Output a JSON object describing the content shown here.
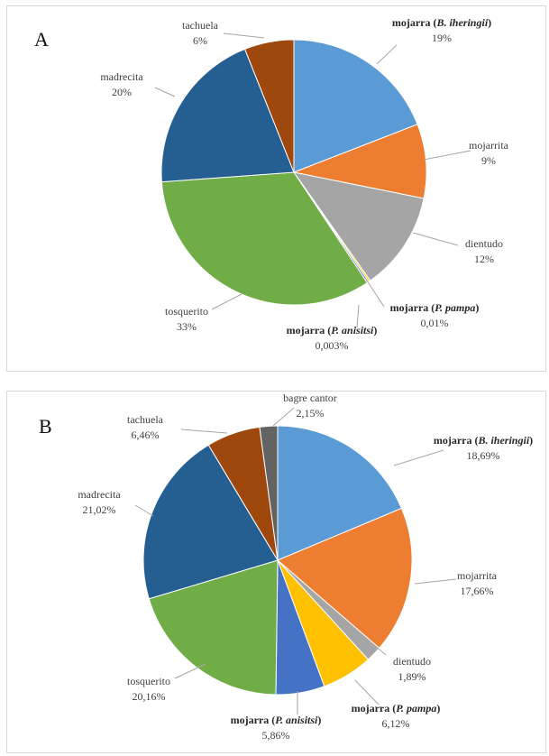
{
  "chart_data": [
    {
      "type": "pie",
      "panel_letter": "A",
      "slices": [
        {
          "pre": "mojarra (",
          "ital": "B. iheringii",
          "post": ")",
          "value": 19,
          "pct": "19%",
          "color": "#5b9bd5",
          "bold": true
        },
        {
          "pre": "mojarrita",
          "ital": "",
          "post": "",
          "value": 9,
          "pct": "9%",
          "color": "#ed7d31",
          "bold": false
        },
        {
          "pre": "dientudo",
          "ital": "",
          "post": "",
          "value": 12,
          "pct": "12%",
          "color": "#a5a5a5",
          "bold": false
        },
        {
          "pre": "mojarra (",
          "ital": "P. pampa",
          "post": ")",
          "value": 0.01,
          "pct": "0,01%",
          "color": "#ffc000",
          "bold": true
        },
        {
          "pre": "mojarra (",
          "ital": "P. anisitsi",
          "post": ")",
          "value": 0.003,
          "pct": "0,003%",
          "color": "#4472c4",
          "bold": true
        },
        {
          "pre": "tosquerito",
          "ital": "",
          "post": "",
          "value": 33,
          "pct": "33%",
          "color": "#70ad47",
          "bold": false
        },
        {
          "pre": "madrecita",
          "ital": "",
          "post": "",
          "value": 20,
          "pct": "20%",
          "color": "#255e91",
          "bold": false
        },
        {
          "pre": "tachuela",
          "ital": "",
          "post": "",
          "value": 6,
          "pct": "6%",
          "color": "#9e480e",
          "bold": false
        }
      ]
    },
    {
      "type": "pie",
      "panel_letter": "B",
      "slices": [
        {
          "pre": "mojarra (",
          "ital": "B. iheringii",
          "post": ")",
          "value": 18.69,
          "pct": "18,69%",
          "color": "#5b9bd5",
          "bold": true
        },
        {
          "pre": "mojarrita",
          "ital": "",
          "post": "",
          "value": 17.66,
          "pct": "17,66%",
          "color": "#ed7d31",
          "bold": false
        },
        {
          "pre": "dientudo",
          "ital": "",
          "post": "",
          "value": 1.89,
          "pct": "1,89%",
          "color": "#a5a5a5",
          "bold": false
        },
        {
          "pre": "mojarra (",
          "ital": "P. pampa",
          "post": ")",
          "value": 6.12,
          "pct": "6,12%",
          "color": "#ffc000",
          "bold": true
        },
        {
          "pre": "mojarra (",
          "ital": "P. anisitsi",
          "post": ")",
          "value": 5.86,
          "pct": "5,86%",
          "color": "#4472c4",
          "bold": true
        },
        {
          "pre": "tosquerito",
          "ital": "",
          "post": "",
          "value": 20.16,
          "pct": "20,16%",
          "color": "#70ad47",
          "bold": false
        },
        {
          "pre": "madrecita",
          "ital": "",
          "post": "",
          "value": 21.02,
          "pct": "21,02%",
          "color": "#255e91",
          "bold": false
        },
        {
          "pre": "tachuela",
          "ital": "",
          "post": "",
          "value": 6.46,
          "pct": "6,46%",
          "color": "#9e480e",
          "bold": false
        },
        {
          "pre": "bagre cantor",
          "ital": "",
          "post": "",
          "value": 2.15,
          "pct": "2,15%",
          "color": "#636363",
          "bold": false
        }
      ]
    }
  ]
}
